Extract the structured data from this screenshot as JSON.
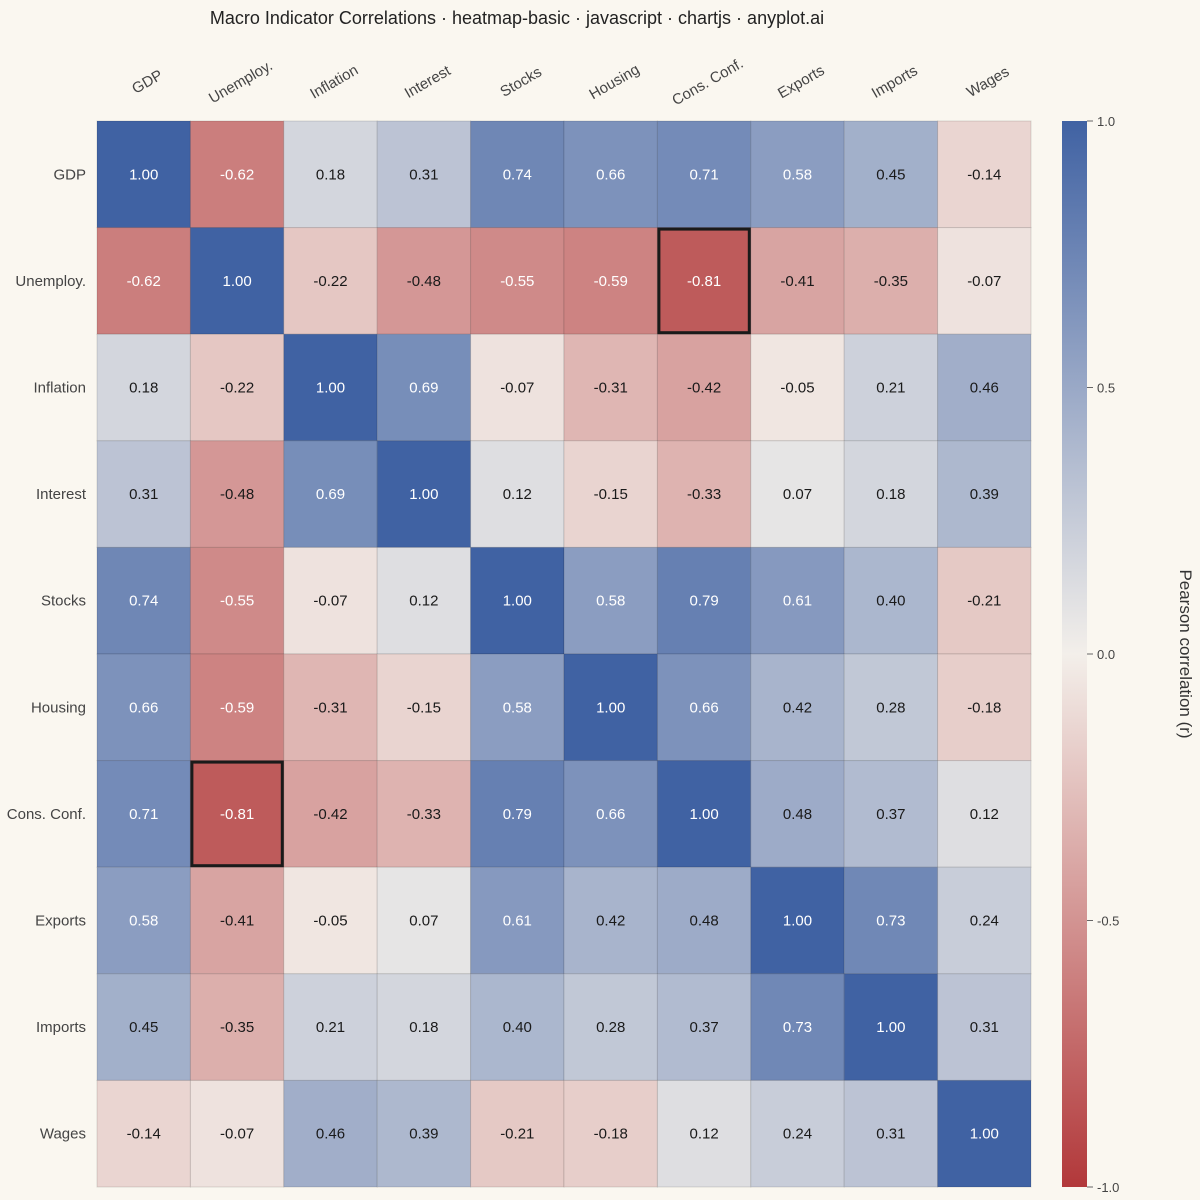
{
  "chart_data": {
    "type": "heatmap",
    "title": "Macro Indicator Correlations · heatmap-basic · javascript · chartjs · anyplot.ai",
    "labels": [
      "GDP",
      "Unemploy.",
      "Inflation",
      "Interest",
      "Stocks",
      "Housing",
      "Cons. Conf.",
      "Exports",
      "Imports",
      "Wages"
    ],
    "matrix": [
      [
        1.0,
        -0.62,
        0.18,
        0.31,
        0.74,
        0.66,
        0.71,
        0.58,
        0.45,
        -0.14
      ],
      [
        -0.62,
        1.0,
        -0.22,
        -0.48,
        -0.55,
        -0.59,
        -0.81,
        -0.41,
        -0.35,
        -0.07
      ],
      [
        0.18,
        -0.22,
        1.0,
        0.69,
        -0.07,
        -0.31,
        -0.42,
        -0.05,
        0.21,
        0.46
      ],
      [
        0.31,
        -0.48,
        0.69,
        1.0,
        0.12,
        -0.15,
        -0.33,
        0.07,
        0.18,
        0.39
      ],
      [
        0.74,
        -0.55,
        -0.07,
        0.12,
        1.0,
        0.58,
        0.79,
        0.61,
        0.4,
        -0.21
      ],
      [
        0.66,
        -0.59,
        -0.31,
        -0.15,
        0.58,
        1.0,
        0.66,
        0.42,
        0.28,
        -0.18
      ],
      [
        0.71,
        -0.81,
        -0.42,
        -0.33,
        0.79,
        0.66,
        1.0,
        0.48,
        0.37,
        0.12
      ],
      [
        0.58,
        -0.41,
        -0.05,
        0.07,
        0.61,
        0.42,
        0.48,
        1.0,
        0.73,
        0.24
      ],
      [
        0.45,
        -0.35,
        0.21,
        0.18,
        0.4,
        0.28,
        0.37,
        0.73,
        1.0,
        0.31
      ],
      [
        -0.14,
        -0.07,
        0.46,
        0.39,
        -0.21,
        -0.18,
        0.12,
        0.24,
        0.31,
        1.0
      ]
    ],
    "highlighted_cells": [
      [
        1,
        6
      ],
      [
        6,
        1
      ]
    ],
    "colorbar": {
      "title": "Pearson correlation (r)",
      "range": [
        -1.0,
        1.0
      ],
      "ticks": [
        "1.0",
        "0.5",
        "0.0",
        "-0.5",
        "-1.0"
      ],
      "color_low": "#b2383a",
      "color_mid": "#f3efea",
      "color_high": "#4062a3"
    }
  }
}
